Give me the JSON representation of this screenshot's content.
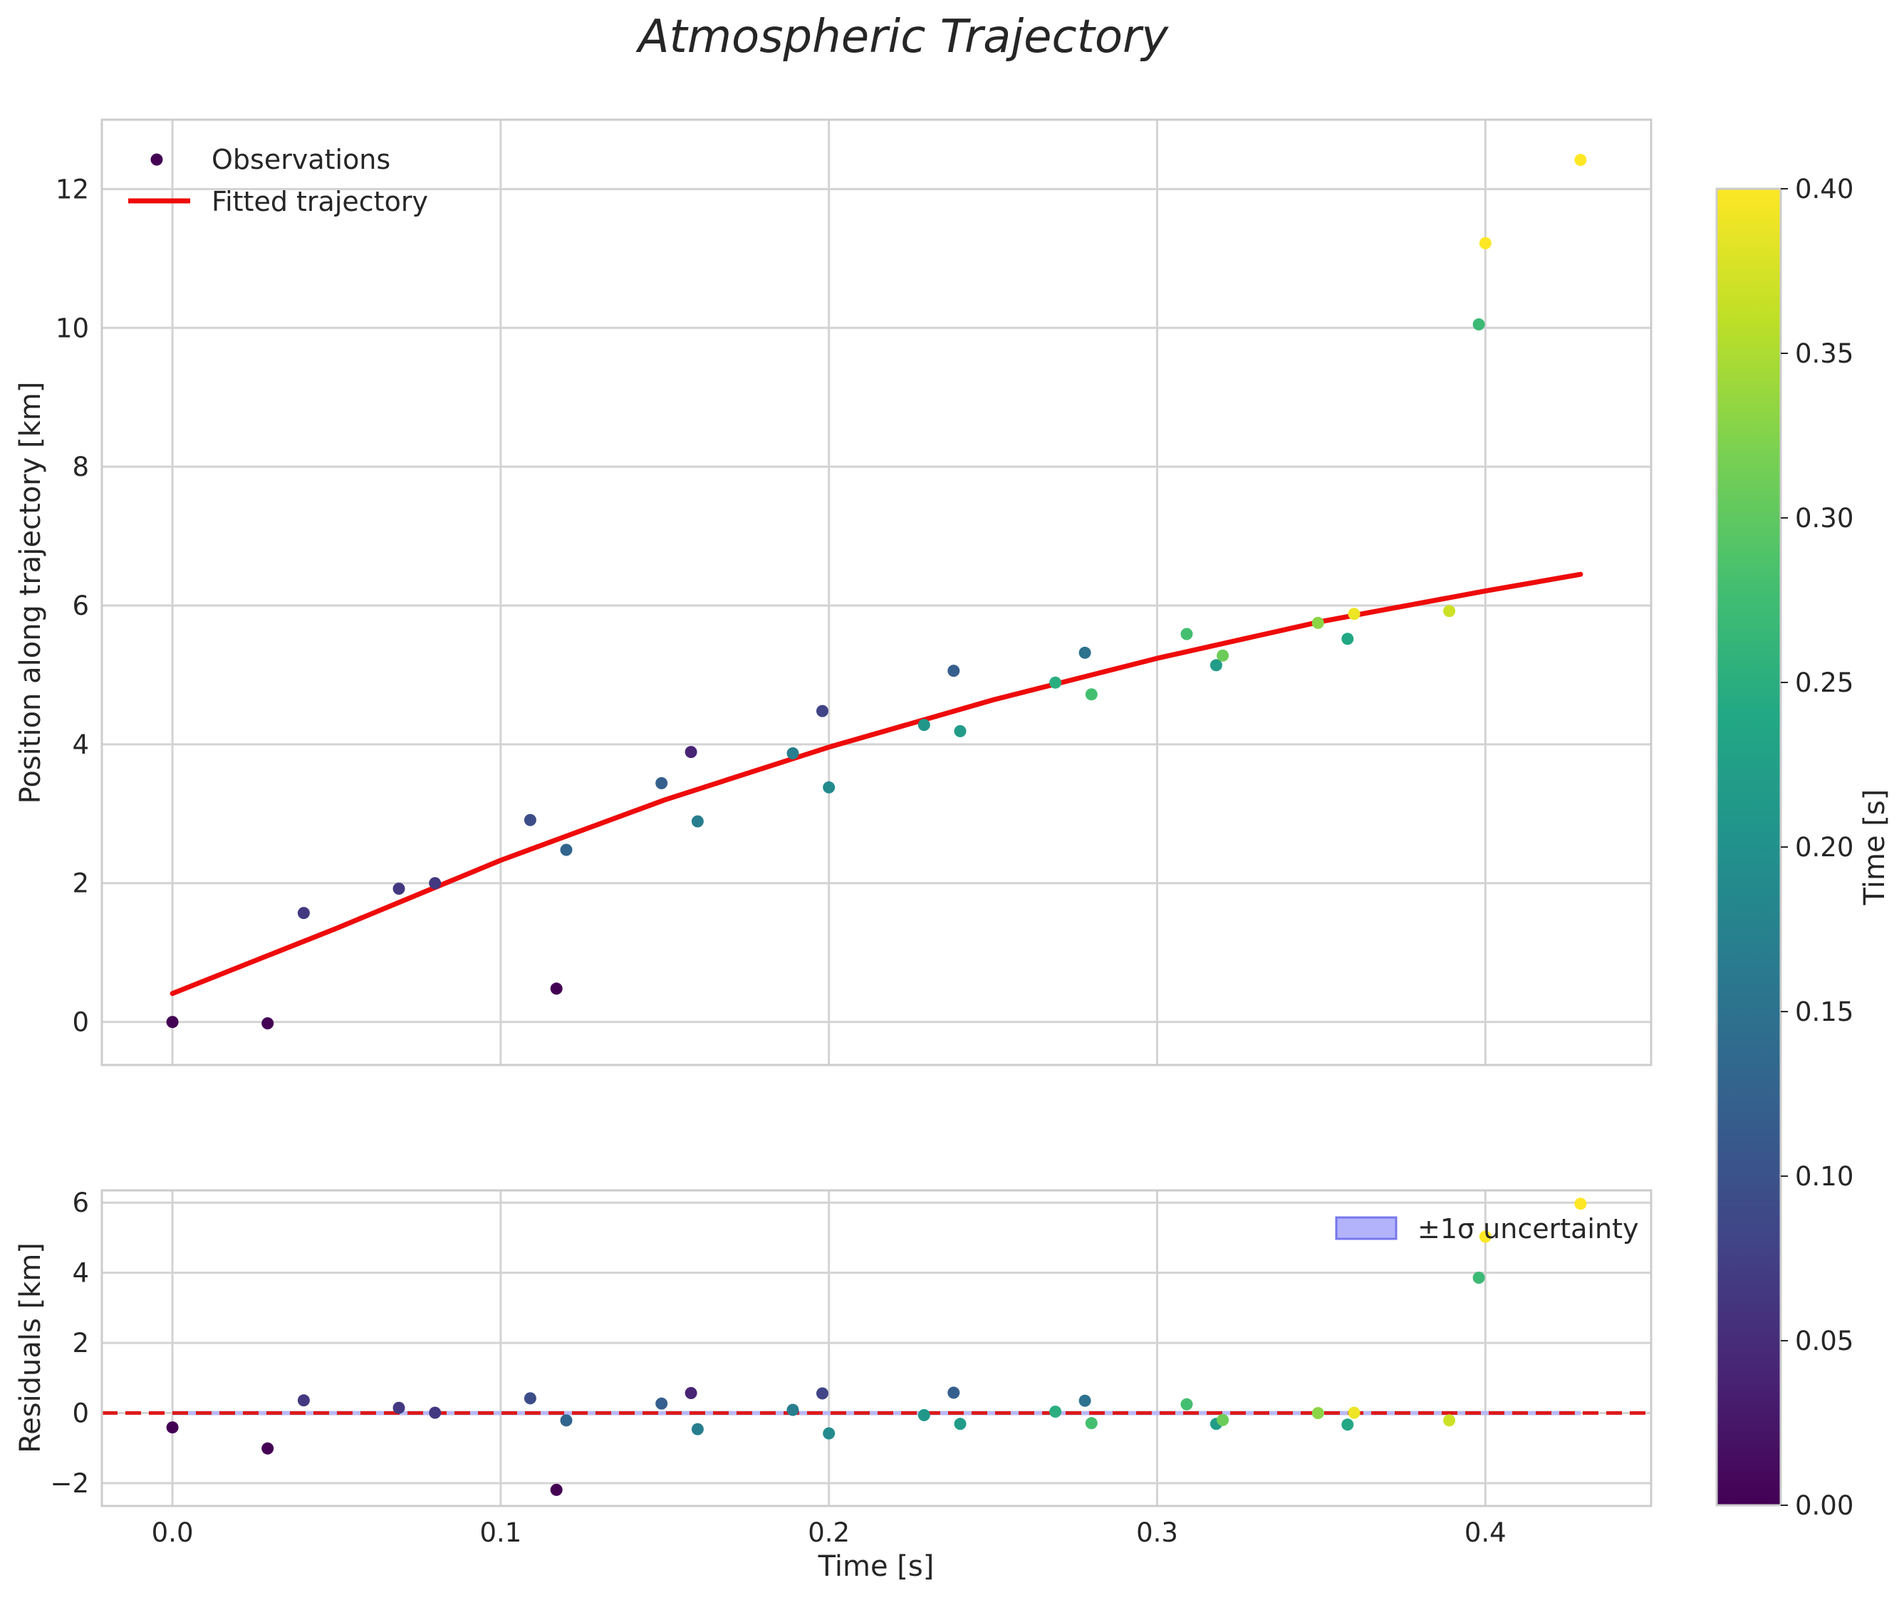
{
  "figure": {
    "title": "Atmospheric Trajectory"
  },
  "colors": {
    "fit_line": "#ee0a0a",
    "zero_line": "#dd1a1a",
    "band_fill": "#b3b3fb",
    "band_edge": "#7777ee",
    "frame": "#cccccc",
    "grid": "#d3d3d3",
    "viridis": [
      "#440154",
      "#482475",
      "#414487",
      "#355f8d",
      "#2a788e",
      "#21918c",
      "#22a884",
      "#44bf70",
      "#7ad151",
      "#bddf26",
      "#fde725"
    ]
  },
  "chart_data": [
    {
      "id": "main",
      "type": "scatter",
      "xlabel": "",
      "ylabel": "Position along trajectory [km]",
      "xlim": [
        -0.0215,
        0.4505
      ],
      "ylim": [
        -0.62,
        13.0
      ],
      "xticks": [
        0.0,
        0.1,
        0.2,
        0.3,
        0.4
      ],
      "yticks": [
        0,
        2,
        4,
        6,
        8,
        10,
        12
      ],
      "ytick_labels": [
        "0",
        "2",
        "4",
        "6",
        "8",
        "10",
        "12"
      ],
      "grid": true,
      "legend": {
        "position": "top-left",
        "entries": [
          "Observations",
          "Fitted trajectory"
        ]
      },
      "series": [
        {
          "name": "Observations",
          "kind": "scatter",
          "x": [
            0.0,
            0.029,
            0.04,
            0.069,
            0.08,
            0.109,
            0.117,
            0.12,
            0.149,
            0.158,
            0.16,
            0.189,
            0.198,
            0.2,
            0.229,
            0.238,
            0.24,
            0.269,
            0.278,
            0.28,
            0.309,
            0.318,
            0.32,
            0.349,
            0.358,
            0.36,
            0.389,
            0.398,
            0.4,
            0.429
          ],
          "y": [
            0.0,
            -0.02,
            1.57,
            1.92,
            2.0,
            2.91,
            0.48,
            2.48,
            3.44,
            3.89,
            2.89,
            3.87,
            4.48,
            3.38,
            4.28,
            5.06,
            4.19,
            4.89,
            5.32,
            4.72,
            5.59,
            5.14,
            5.28,
            5.75,
            5.52,
            5.88,
            5.92,
            10.05,
            11.22,
            12.42
          ],
          "color_time": [
            0.0,
            0.0,
            0.066,
            0.066,
            0.066,
            0.094,
            0.0,
            0.13,
            0.12,
            0.04,
            0.17,
            0.17,
            0.08,
            0.19,
            0.21,
            0.12,
            0.22,
            0.25,
            0.15,
            0.28,
            0.28,
            0.22,
            0.31,
            0.33,
            0.24,
            0.39,
            0.37,
            0.27,
            0.4,
            0.4
          ]
        },
        {
          "name": "Fitted trajectory",
          "kind": "line",
          "x": [
            0.0,
            0.05,
            0.1,
            0.15,
            0.2,
            0.25,
            0.3,
            0.35,
            0.4,
            0.429
          ],
          "y": [
            0.41,
            1.35,
            2.33,
            3.2,
            3.96,
            4.64,
            5.24,
            5.77,
            6.21,
            6.45
          ]
        }
      ]
    },
    {
      "id": "residuals",
      "type": "scatter",
      "xlabel": "Time [s]",
      "ylabel": "Residuals [km]",
      "xlim": [
        -0.0215,
        0.4505
      ],
      "ylim": [
        -2.65,
        6.35
      ],
      "xticks": [
        0.0,
        0.1,
        0.2,
        0.3,
        0.4
      ],
      "xtick_labels": [
        "0.0",
        "0.1",
        "0.2",
        "0.3",
        "0.4"
      ],
      "yticks": [
        -2,
        0,
        2,
        4,
        6
      ],
      "ytick_labels": [
        "−2",
        "0",
        "2",
        "4",
        "6"
      ],
      "grid": true,
      "legend": {
        "position": "top-right",
        "entries": [
          "±1σ uncertainty"
        ]
      },
      "uncertainty_band": {
        "x": [
          0.0,
          0.429
        ],
        "lower": -0.06,
        "upper": 0.06
      },
      "zero_line": 0,
      "series": [
        {
          "name": "Residuals",
          "kind": "scatter",
          "x": [
            0.0,
            0.029,
            0.04,
            0.069,
            0.08,
            0.109,
            0.117,
            0.12,
            0.149,
            0.158,
            0.16,
            0.189,
            0.198,
            0.2,
            0.229,
            0.238,
            0.24,
            0.269,
            0.278,
            0.28,
            0.309,
            0.318,
            0.32,
            0.349,
            0.358,
            0.36,
            0.389,
            0.398,
            0.4,
            0.429
          ],
          "y": [
            -0.41,
            -1.01,
            0.36,
            0.15,
            0.01,
            0.42,
            -2.19,
            -0.21,
            0.27,
            0.57,
            -0.46,
            0.09,
            0.56,
            -0.58,
            -0.06,
            0.58,
            -0.31,
            0.04,
            0.35,
            -0.29,
            0.25,
            -0.31,
            -0.2,
            0.0,
            -0.33,
            0.01,
            -0.21,
            3.86,
            5.03,
            5.97
          ],
          "color_time": [
            0.0,
            0.0,
            0.066,
            0.066,
            0.066,
            0.094,
            0.0,
            0.13,
            0.12,
            0.04,
            0.17,
            0.17,
            0.08,
            0.19,
            0.21,
            0.12,
            0.22,
            0.25,
            0.15,
            0.28,
            0.28,
            0.22,
            0.31,
            0.33,
            0.24,
            0.39,
            0.37,
            0.27,
            0.4,
            0.4
          ]
        }
      ]
    },
    {
      "id": "colorbar",
      "type": "heatmap",
      "label": "Time [s]",
      "colormap": "viridis",
      "range": [
        0.0,
        0.4
      ],
      "ticks": [
        0.0,
        0.05,
        0.1,
        0.15,
        0.2,
        0.25,
        0.3,
        0.35,
        0.4
      ],
      "tick_labels": [
        "0.00",
        "0.05",
        "0.10",
        "0.15",
        "0.20",
        "0.25",
        "0.30",
        "0.35",
        "0.40"
      ]
    }
  ]
}
